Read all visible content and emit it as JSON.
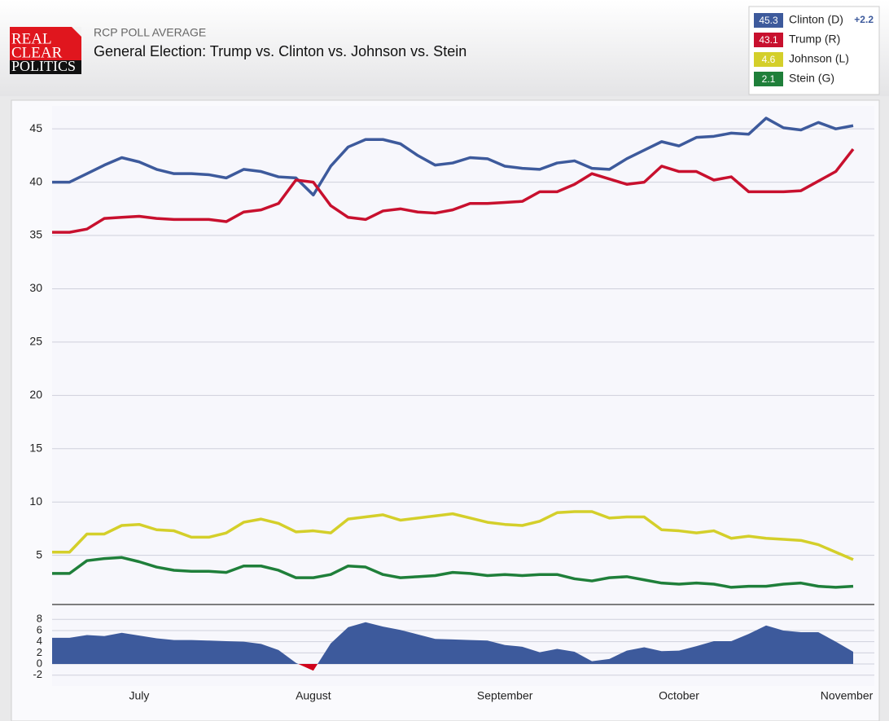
{
  "header": {
    "logo": [
      "REAL",
      "CLEAR",
      "POLITICS"
    ],
    "kicker": "RCP POLL AVERAGE",
    "title": "General Election: Trump vs. Clinton vs. Johnson vs. Stein"
  },
  "chart_data": [
    {
      "type": "line",
      "categories": [
        null,
        null,
        null,
        null,
        null,
        "July",
        null,
        null,
        null,
        null,
        null,
        null,
        null,
        null,
        null,
        "August",
        null,
        null,
        null,
        null,
        null,
        null,
        null,
        null,
        null,
        null,
        "September",
        null,
        null,
        null,
        null,
        null,
        null,
        null,
        null,
        null,
        "October",
        null,
        null,
        null,
        null,
        null,
        null,
        null,
        null,
        null,
        "November"
      ],
      "series": [
        {
          "name": "Clinton (D)",
          "color": "#3d5a9c",
          "values": [
            40.0,
            40.0,
            40.8,
            41.6,
            42.3,
            41.9,
            41.2,
            40.8,
            40.8,
            40.7,
            40.4,
            41.2,
            41.0,
            40.5,
            40.4,
            38.8,
            41.5,
            43.3,
            44.0,
            44.0,
            43.6,
            42.5,
            41.6,
            41.8,
            42.3,
            42.2,
            41.5,
            41.3,
            41.2,
            41.8,
            42.0,
            41.3,
            41.2,
            42.2,
            43.0,
            43.8,
            43.4,
            44.2,
            44.3,
            44.6,
            44.5,
            46.0,
            45.1,
            44.9,
            45.6,
            45.0,
            45.3
          ]
        },
        {
          "name": "Trump (R)",
          "color": "#c8102e",
          "values": [
            35.3,
            35.3,
            35.6,
            36.6,
            36.7,
            36.8,
            36.6,
            36.5,
            36.5,
            36.5,
            36.3,
            37.2,
            37.4,
            38.0,
            40.2,
            40.0,
            37.8,
            36.7,
            36.5,
            37.3,
            37.5,
            37.2,
            37.1,
            37.4,
            38.0,
            38.0,
            38.1,
            38.2,
            39.1,
            39.1,
            39.8,
            40.8,
            40.3,
            39.8,
            40.0,
            41.5,
            41.0,
            41.0,
            40.2,
            40.5,
            39.1,
            39.1,
            39.1,
            39.2,
            40.1,
            41.0,
            43.1
          ]
        },
        {
          "name": "Johnson (L)",
          "color": "#d4cf2a",
          "values": [
            5.3,
            5.3,
            7.0,
            7.0,
            7.8,
            7.9,
            7.4,
            7.3,
            6.7,
            6.7,
            7.1,
            8.1,
            8.4,
            8.0,
            7.2,
            7.3,
            7.1,
            8.4,
            8.6,
            8.8,
            8.3,
            8.5,
            8.7,
            8.9,
            8.5,
            8.1,
            7.9,
            7.8,
            8.2,
            9.0,
            9.1,
            9.1,
            8.5,
            8.6,
            8.6,
            7.4,
            7.3,
            7.1,
            7.3,
            6.6,
            6.8,
            6.6,
            6.5,
            6.4,
            6.0,
            5.3,
            4.6
          ]
        },
        {
          "name": "Stein (G)",
          "color": "#1f7f3a",
          "values": [
            3.3,
            3.3,
            4.5,
            4.7,
            4.8,
            4.4,
            3.9,
            3.6,
            3.5,
            3.5,
            3.4,
            4.0,
            4.0,
            3.6,
            2.9,
            2.9,
            3.2,
            4.0,
            3.9,
            3.2,
            2.9,
            3.0,
            3.1,
            3.4,
            3.3,
            3.1,
            3.2,
            3.1,
            3.2,
            3.2,
            2.8,
            2.6,
            2.9,
            3.0,
            2.7,
            2.4,
            2.3,
            2.4,
            2.3,
            2.0,
            2.1,
            2.1,
            2.3,
            2.4,
            2.1,
            2.0,
            2.1
          ]
        }
      ],
      "ylim": [
        1,
        47
      ],
      "yticks": [
        5,
        10,
        15,
        20,
        25,
        30,
        35,
        40,
        45
      ],
      "grid": true
    },
    {
      "type": "area",
      "color": "#3d5a9c",
      "negative_color": "#d0021b",
      "values": [
        4.7,
        4.7,
        5.2,
        5.0,
        5.6,
        5.1,
        4.6,
        4.3,
        4.3,
        4.2,
        4.1,
        4.0,
        3.6,
        2.5,
        0.2,
        -1.2,
        3.7,
        6.6,
        7.5,
        6.7,
        6.1,
        5.3,
        4.5,
        4.4,
        4.3,
        4.2,
        3.4,
        3.1,
        2.1,
        2.7,
        2.2,
        0.5,
        0.9,
        2.4,
        3.0,
        2.3,
        2.4,
        3.2,
        4.1,
        4.1,
        5.4,
        6.9,
        6.0,
        5.7,
        5.7,
        4.0,
        2.2
      ],
      "value_labels": [
        null,
        null,
        null,
        null,
        null,
        null,
        null,
        null,
        null,
        null,
        null,
        null,
        null,
        null,
        null,
        null,
        null,
        null,
        null,
        null,
        null,
        null,
        null,
        null,
        null,
        null,
        null,
        null,
        null,
        null,
        null,
        null,
        null,
        null,
        null,
        null,
        null,
        null,
        null,
        null,
        null,
        null,
        null,
        null,
        null,
        null,
        "+2.2"
      ],
      "ylim": [
        -3.5,
        9.5
      ],
      "yticks": [
        -2,
        0,
        2,
        4,
        6,
        8
      ],
      "grid": true
    }
  ]
}
